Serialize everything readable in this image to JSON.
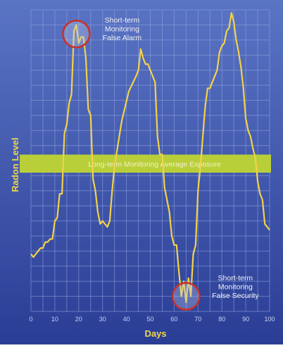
{
  "chart_data": {
    "type": "line",
    "xlabel": "Days",
    "ylabel": "Radon Level",
    "xlim": [
      0,
      100
    ],
    "ylim": [
      0,
      100
    ],
    "x_ticks": [
      "0",
      "10",
      "20",
      "30",
      "40",
      "50",
      "60",
      "70",
      "80",
      "90",
      "100"
    ],
    "grid": true,
    "colors": {
      "background_top": "#5a74c4",
      "background_bottom": "#2a3d95",
      "grid": "#93a6e0",
      "line": "#f2d24a",
      "band": "#b9cf3a",
      "circle": "#c8312a"
    },
    "series": [
      {
        "values": [
          [
            0,
            19
          ],
          [
            1,
            18
          ],
          [
            2,
            19
          ],
          [
            3,
            20
          ],
          [
            4,
            21
          ],
          [
            5,
            21
          ],
          [
            6,
            23
          ],
          [
            7,
            23
          ],
          [
            8,
            24
          ],
          [
            9,
            24
          ],
          [
            10,
            30
          ],
          [
            11,
            31
          ],
          [
            12,
            39
          ],
          [
            13,
            39
          ],
          [
            14,
            59
          ],
          [
            15,
            62
          ],
          [
            16,
            69
          ],
          [
            17,
            72
          ],
          [
            18,
            93
          ],
          [
            19,
            95
          ],
          [
            20,
            89
          ],
          [
            21,
            91
          ],
          [
            22,
            91
          ],
          [
            23,
            84
          ],
          [
            24,
            67
          ],
          [
            25,
            65
          ],
          [
            26,
            44
          ],
          [
            27,
            40
          ],
          [
            28,
            33
          ],
          [
            29,
            29
          ],
          [
            30,
            30
          ],
          [
            31,
            29
          ],
          [
            32,
            28
          ],
          [
            33,
            30
          ],
          [
            34,
            40
          ],
          [
            35,
            48
          ],
          [
            38,
            63
          ],
          [
            41,
            73
          ],
          [
            44,
            78
          ],
          [
            45,
            80
          ],
          [
            46,
            87
          ],
          [
            47,
            84
          ],
          [
            48,
            82
          ],
          [
            49,
            82
          ],
          [
            50,
            80
          ],
          [
            51,
            78
          ],
          [
            52,
            76
          ],
          [
            53,
            58
          ],
          [
            54,
            52
          ],
          [
            55,
            52
          ],
          [
            56,
            41
          ],
          [
            57,
            37
          ],
          [
            58,
            33
          ],
          [
            59,
            25
          ],
          [
            60,
            22
          ],
          [
            61,
            22
          ],
          [
            62,
            13
          ],
          [
            63,
            5
          ],
          [
            64,
            10
          ],
          [
            65,
            3
          ],
          [
            66,
            11
          ],
          [
            67,
            5
          ],
          [
            68,
            19
          ],
          [
            69,
            22
          ],
          [
            70,
            40
          ],
          [
            71,
            48
          ],
          [
            72,
            58
          ],
          [
            73,
            68
          ],
          [
            74,
            74
          ],
          [
            75,
            74
          ],
          [
            76,
            76
          ],
          [
            77,
            78
          ],
          [
            78,
            80
          ],
          [
            79,
            86
          ],
          [
            80,
            88
          ],
          [
            81,
            89
          ],
          [
            82,
            93
          ],
          [
            83,
            94
          ],
          [
            84,
            99
          ],
          [
            85,
            96
          ],
          [
            86,
            90
          ],
          [
            87,
            86
          ],
          [
            88,
            81
          ],
          [
            89,
            74
          ],
          [
            90,
            64
          ],
          [
            91,
            60
          ],
          [
            92,
            58
          ],
          [
            93,
            54
          ],
          [
            94,
            51
          ],
          [
            95,
            43
          ],
          [
            96,
            39
          ],
          [
            97,
            37
          ],
          [
            98,
            29
          ],
          [
            99,
            28
          ],
          [
            100,
            27
          ]
        ]
      }
    ],
    "band": {
      "y_from": 46,
      "y_to": 52,
      "label": "Long-term Monitoring Average Exposure"
    },
    "annotations": [
      {
        "id": "false-alarm",
        "lines": [
          "Short-term",
          "Monitoring",
          "False Alarm"
        ],
        "x": 19,
        "y": 92
      },
      {
        "id": "false-security",
        "lines": [
          "Short-term",
          "Monitoring",
          "False Security"
        ],
        "x": 65,
        "y": 5
      }
    ]
  }
}
